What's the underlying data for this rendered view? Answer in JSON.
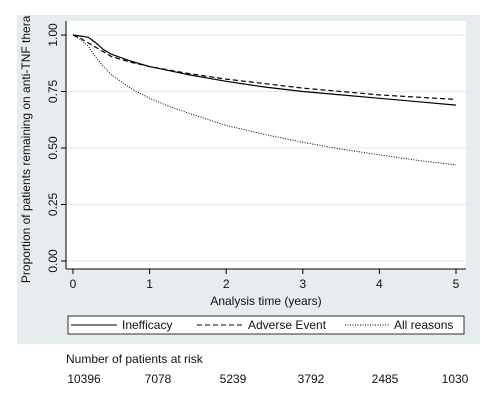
{
  "chart_data": {
    "type": "line",
    "xlabel": "Analysis time (years)",
    "ylabel": "Proportion of patients remaining on anti-TNF therapy",
    "xlim": [
      0,
      5
    ],
    "ylim": [
      0,
      1
    ],
    "x_ticks": [
      0,
      1,
      2,
      3,
      4,
      5
    ],
    "y_ticks": [
      0.0,
      0.25,
      0.5,
      0.75,
      1.0
    ],
    "y_tick_labels": [
      "0.00",
      "0.25",
      "0.50",
      "0.75",
      "1.00"
    ],
    "x_tick_labels": [
      "0",
      "1",
      "2",
      "3",
      "4",
      "5"
    ],
    "grid": "horizontal",
    "legend_position": "bottom",
    "series": [
      {
        "name": "Inefficacy",
        "dash": "solid",
        "color": "#000000",
        "x": [
          0,
          0.1,
          0.2,
          0.3,
          0.4,
          0.5,
          0.75,
          1.0,
          1.5,
          2.0,
          2.5,
          3.0,
          3.5,
          4.0,
          4.5,
          5.0
        ],
        "y": [
          1.0,
          0.995,
          0.99,
          0.965,
          0.935,
          0.915,
          0.885,
          0.86,
          0.825,
          0.795,
          0.77,
          0.75,
          0.735,
          0.72,
          0.705,
          0.69
        ]
      },
      {
        "name": "Adverse Event",
        "dash": "dashed",
        "color": "#000000",
        "x": [
          0,
          0.1,
          0.2,
          0.3,
          0.4,
          0.5,
          0.75,
          1.0,
          1.5,
          2.0,
          2.5,
          3.0,
          3.5,
          4.0,
          4.5,
          5.0
        ],
        "y": [
          1.0,
          0.985,
          0.965,
          0.945,
          0.925,
          0.905,
          0.88,
          0.86,
          0.83,
          0.805,
          0.785,
          0.765,
          0.75,
          0.735,
          0.725,
          0.715
        ]
      },
      {
        "name": "All reasons",
        "dash": "dotted",
        "color": "#000000",
        "x": [
          0,
          0.1,
          0.2,
          0.3,
          0.4,
          0.5,
          0.6,
          0.75,
          1.0,
          1.25,
          1.5,
          2.0,
          2.5,
          3.0,
          3.5,
          4.0,
          4.5,
          5.0
        ],
        "y": [
          1.0,
          0.98,
          0.95,
          0.9,
          0.86,
          0.825,
          0.8,
          0.765,
          0.72,
          0.685,
          0.655,
          0.6,
          0.56,
          0.525,
          0.495,
          0.47,
          0.445,
          0.425
        ]
      }
    ],
    "risk_table": {
      "title": "Number of patients at risk",
      "values": [
        "10396",
        "7078",
        "5239",
        "3792",
        "2485",
        "1030"
      ]
    }
  }
}
